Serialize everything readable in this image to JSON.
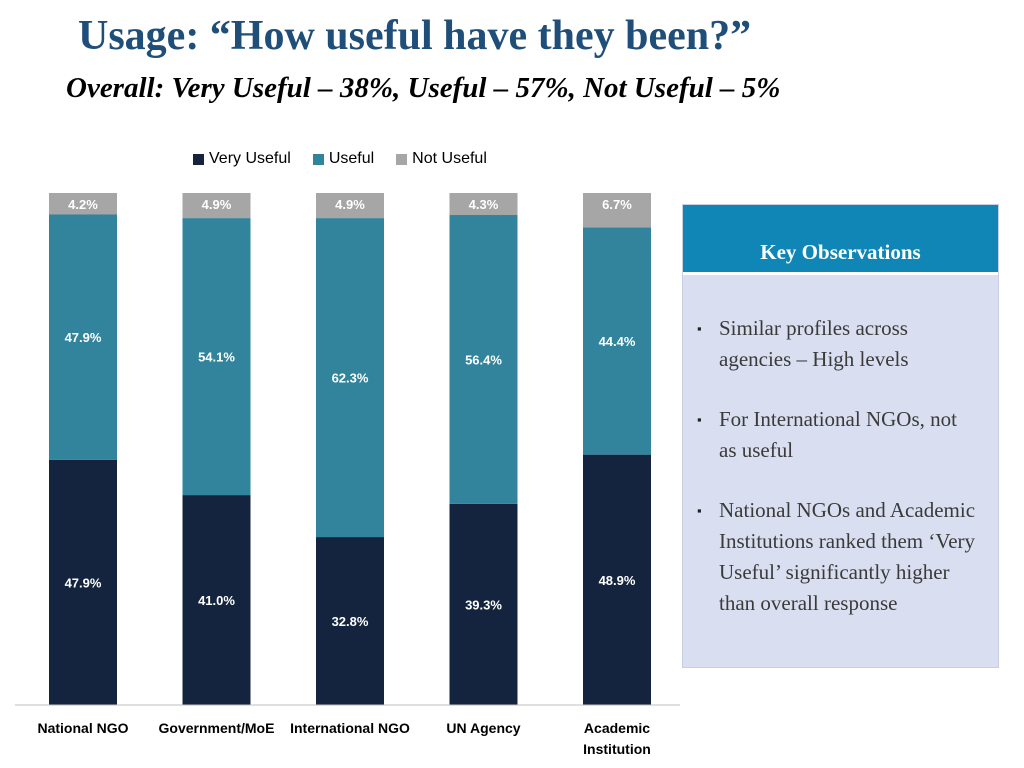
{
  "title": "Usage: “How useful have they been?”",
  "subtitle": "Overall: Very Useful – 38%, Useful – 57%, Not Useful – 5%",
  "colors": {
    "very_useful": "#14243e",
    "useful": "#31849b",
    "not_useful": "#a6a6a6",
    "title": "#1f4e79",
    "panel_header": "#0f86b6",
    "panel_body": "#d9dff0"
  },
  "chart_data": {
    "type": "bar",
    "stacked": true,
    "percent": true,
    "categories": [
      "National NGO",
      "Government/MoE",
      "International NGO",
      "UN Agency",
      "Academic Institution"
    ],
    "category_lines": [
      [
        "National NGO"
      ],
      [
        "Government/MoE"
      ],
      [
        "International NGO"
      ],
      [
        "UN Agency"
      ],
      [
        "Academic",
        "Institution"
      ]
    ],
    "series": [
      {
        "name": "Very Useful",
        "values": [
          47.9,
          41.0,
          32.8,
          39.3,
          48.9
        ],
        "labels": [
          "47.9%",
          "41.0%",
          "32.8%",
          "39.3%",
          "48.9%"
        ],
        "color": "#14243e"
      },
      {
        "name": "Useful",
        "values": [
          47.9,
          54.1,
          62.3,
          56.4,
          44.4
        ],
        "labels": [
          "47.9%",
          "54.1%",
          "62.3%",
          "56.4%",
          "44.4%"
        ],
        "color": "#31849b"
      },
      {
        "name": "Not Useful",
        "values": [
          4.2,
          4.9,
          4.9,
          4.3,
          6.7
        ],
        "labels": [
          "4.2%",
          "4.9%",
          "4.9%",
          "4.3%",
          "6.7%"
        ],
        "color": "#a6a6a6"
      }
    ],
    "ylim": [
      0,
      100
    ],
    "legend_position": "top",
    "grid": false
  },
  "panel": {
    "title": "Key Observations",
    "items": [
      "Similar profiles across agencies – High levels",
      "For International NGOs, not as useful",
      "National NGOs and Academic Institutions ranked them ‘Very Useful’ significantly higher than overall response"
    ]
  }
}
